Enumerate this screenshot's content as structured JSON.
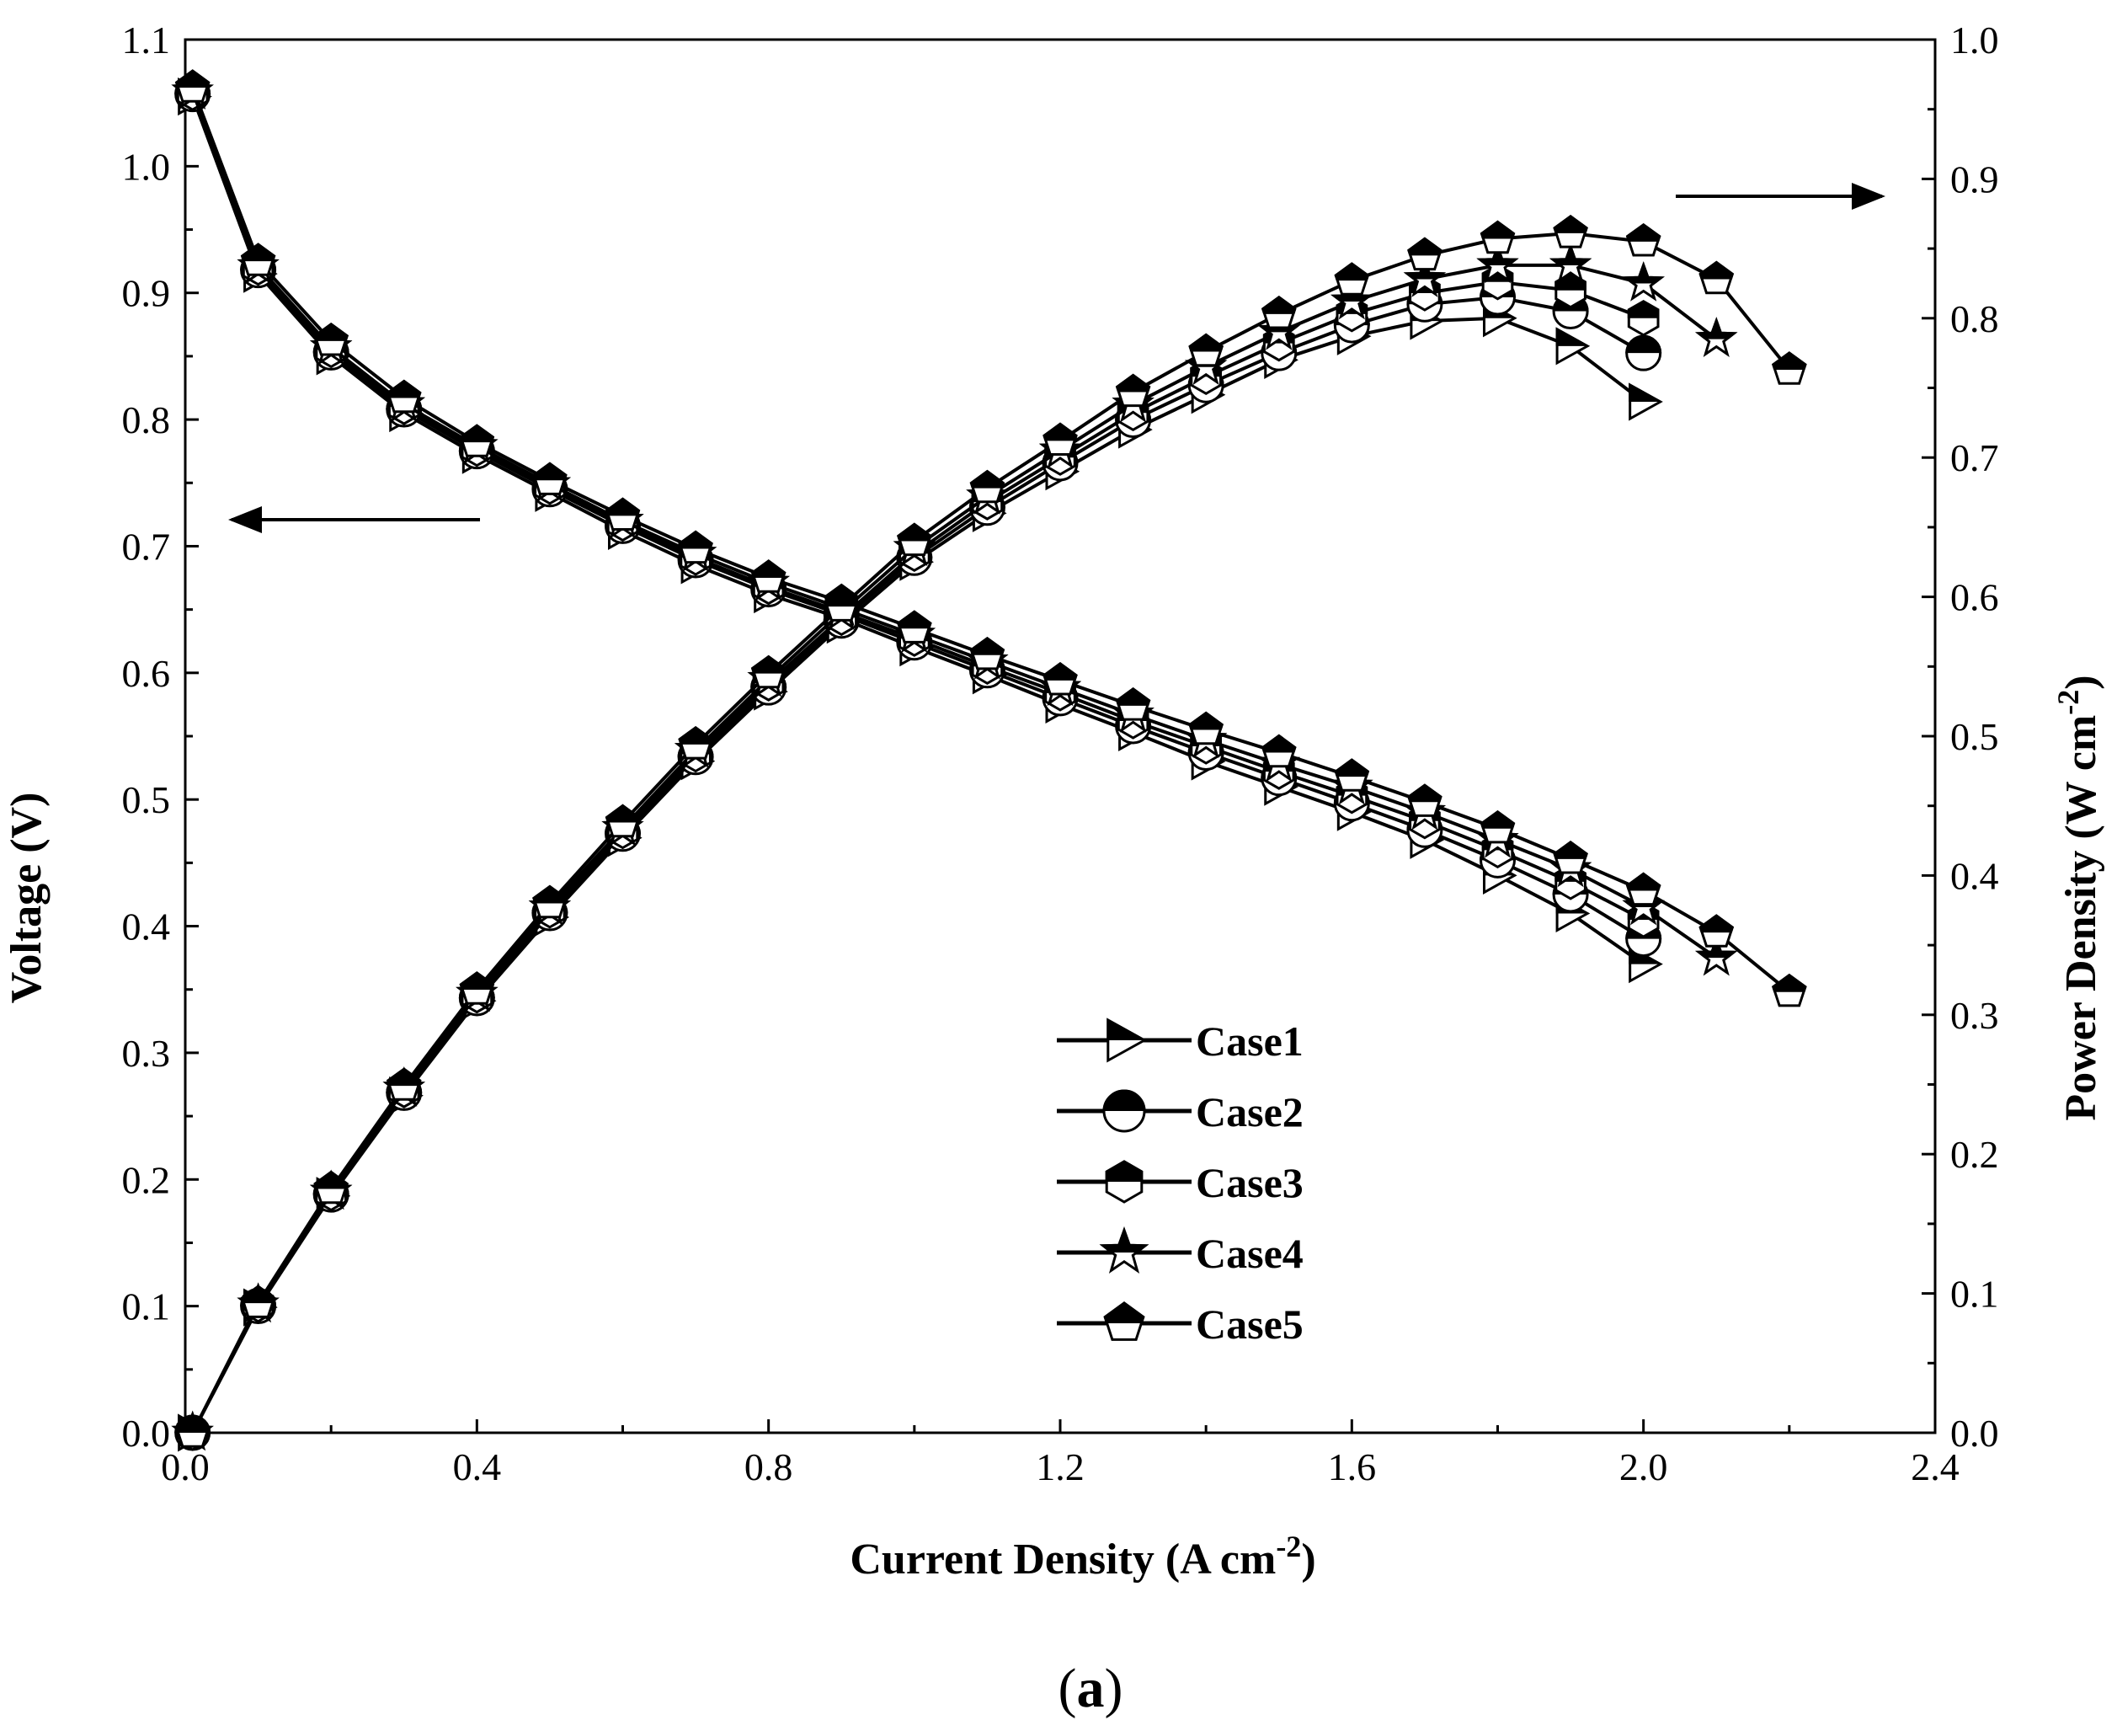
{
  "chart_data": {
    "type": "line",
    "caption": {
      "open": "(",
      "letter": "a",
      "close": ")"
    },
    "xlabel": {
      "text": "Current Density (A cm",
      "sup": "-2",
      "close": ")"
    },
    "ylabel_left": "Voltage (V)",
    "ylabel_right": {
      "text": "Power Density (W cm",
      "sup": "-2",
      "close": ")"
    },
    "xlim": [
      0,
      2.4
    ],
    "ylim_left": [
      0,
      1.1
    ],
    "ylim_right": [
      0,
      1.0
    ],
    "x_ticks": [
      "0.0",
      "0.4",
      "0.8",
      "1.2",
      "1.6",
      "2.0",
      "2.4"
    ],
    "y_left_ticks": [
      "0.0",
      "0.1",
      "0.2",
      "0.3",
      "0.4",
      "0.5",
      "0.6",
      "0.7",
      "0.8",
      "0.9",
      "1.0",
      "1.1"
    ],
    "y_right_ticks": [
      "0.0",
      "0.1",
      "0.2",
      "0.3",
      "0.4",
      "0.5",
      "0.6",
      "0.7",
      "0.8",
      "0.9",
      "1.0"
    ],
    "arrows": [
      {
        "points_to": "left-axis",
        "series_group": "voltage"
      },
      {
        "points_to": "right-axis",
        "series_group": "power"
      }
    ],
    "series": [
      {
        "name": "Case1",
        "marker": "triangle-right",
        "voltage": {
          "x": [
            0.01,
            0.1,
            0.2,
            0.3,
            0.4,
            0.5,
            0.6,
            0.7,
            0.8,
            0.9,
            1.0,
            1.1,
            1.2,
            1.3,
            1.4,
            1.5,
            1.6,
            1.7,
            1.8,
            1.9,
            2.0
          ],
          "y": [
            1.055,
            0.915,
            0.85,
            0.805,
            0.772,
            0.742,
            0.712,
            0.685,
            0.662,
            0.643,
            0.62,
            0.598,
            0.575,
            0.553,
            0.53,
            0.51,
            0.49,
            0.468,
            0.44,
            0.41,
            0.37
          ]
        },
        "power": {
          "x": [
            0.01,
            0.1,
            0.2,
            0.3,
            0.4,
            0.5,
            0.6,
            0.7,
            0.8,
            0.9,
            1.0,
            1.1,
            1.2,
            1.3,
            1.4,
            1.5,
            1.6,
            1.7,
            1.8,
            1.9,
            2.0
          ],
          "y": [
            0.0,
            0.09,
            0.17,
            0.242,
            0.31,
            0.37,
            0.427,
            0.482,
            0.532,
            0.58,
            0.625,
            0.66,
            0.69,
            0.72,
            0.745,
            0.77,
            0.787,
            0.798,
            0.8,
            0.78,
            0.74
          ]
        }
      },
      {
        "name": "Case2",
        "marker": "circle-half",
        "voltage": {
          "x": [
            0.01,
            0.1,
            0.2,
            0.3,
            0.4,
            0.5,
            0.6,
            0.7,
            0.8,
            0.9,
            1.0,
            1.1,
            1.2,
            1.3,
            1.4,
            1.5,
            1.6,
            1.7,
            1.8,
            1.9,
            2.0
          ],
          "y": [
            1.057,
            0.918,
            0.853,
            0.808,
            0.775,
            0.745,
            0.716,
            0.689,
            0.666,
            0.646,
            0.624,
            0.602,
            0.58,
            0.558,
            0.537,
            0.517,
            0.497,
            0.476,
            0.452,
            0.425,
            0.39
          ]
        },
        "power": {
          "x": [
            0.01,
            0.1,
            0.2,
            0.3,
            0.4,
            0.5,
            0.6,
            0.7,
            0.8,
            0.9,
            1.0,
            1.1,
            1.2,
            1.3,
            1.4,
            1.5,
            1.6,
            1.7,
            1.8,
            1.9,
            2.0
          ],
          "y": [
            0.0,
            0.091,
            0.171,
            0.244,
            0.312,
            0.373,
            0.43,
            0.485,
            0.535,
            0.583,
            0.628,
            0.664,
            0.696,
            0.727,
            0.752,
            0.775,
            0.795,
            0.81,
            0.815,
            0.805,
            0.775
          ]
        }
      },
      {
        "name": "Case3",
        "marker": "hexagon-half",
        "voltage": {
          "x": [
            0.01,
            0.1,
            0.2,
            0.3,
            0.4,
            0.5,
            0.6,
            0.7,
            0.8,
            0.9,
            1.0,
            1.1,
            1.2,
            1.3,
            1.4,
            1.5,
            1.6,
            1.7,
            1.8,
            1.9,
            2.0
          ],
          "y": [
            1.058,
            0.92,
            0.855,
            0.81,
            0.777,
            0.747,
            0.718,
            0.691,
            0.668,
            0.648,
            0.627,
            0.605,
            0.584,
            0.562,
            0.542,
            0.522,
            0.503,
            0.483,
            0.46,
            0.435,
            0.405
          ]
        },
        "power": {
          "x": [
            0.01,
            0.1,
            0.2,
            0.3,
            0.4,
            0.5,
            0.6,
            0.7,
            0.8,
            0.9,
            1.0,
            1.1,
            1.2,
            1.3,
            1.4,
            1.5,
            1.6,
            1.7,
            1.8,
            1.9,
            2.0
          ],
          "y": [
            0.0,
            0.092,
            0.172,
            0.246,
            0.314,
            0.375,
            0.432,
            0.487,
            0.538,
            0.585,
            0.631,
            0.668,
            0.7,
            0.732,
            0.758,
            0.782,
            0.803,
            0.818,
            0.826,
            0.82,
            0.8
          ]
        }
      },
      {
        "name": "Case4",
        "marker": "star",
        "voltage": {
          "x": [
            0.01,
            0.1,
            0.2,
            0.3,
            0.4,
            0.5,
            0.6,
            0.7,
            0.8,
            0.9,
            1.0,
            1.1,
            1.2,
            1.3,
            1.4,
            1.5,
            1.6,
            1.7,
            1.8,
            1.9,
            2.0,
            2.1
          ],
          "y": [
            1.059,
            0.921,
            0.857,
            0.812,
            0.779,
            0.749,
            0.72,
            0.694,
            0.671,
            0.651,
            0.63,
            0.609,
            0.588,
            0.567,
            0.547,
            0.528,
            0.51,
            0.49,
            0.468,
            0.445,
            0.415,
            0.375
          ]
        },
        "power": {
          "x": [
            0.01,
            0.1,
            0.2,
            0.3,
            0.4,
            0.5,
            0.6,
            0.7,
            0.8,
            0.9,
            1.0,
            1.1,
            1.2,
            1.3,
            1.4,
            1.5,
            1.6,
            1.7,
            1.8,
            1.9,
            2.0,
            2.1
          ],
          "y": [
            0.0,
            0.092,
            0.173,
            0.247,
            0.315,
            0.377,
            0.434,
            0.49,
            0.541,
            0.589,
            0.635,
            0.672,
            0.705,
            0.738,
            0.765,
            0.79,
            0.812,
            0.828,
            0.838,
            0.838,
            0.825,
            0.785
          ]
        }
      },
      {
        "name": "Case5",
        "marker": "pentagon-half",
        "voltage": {
          "x": [
            0.01,
            0.1,
            0.2,
            0.3,
            0.4,
            0.5,
            0.6,
            0.7,
            0.8,
            0.9,
            1.0,
            1.1,
            1.2,
            1.3,
            1.4,
            1.5,
            1.6,
            1.7,
            1.8,
            1.9,
            2.0,
            2.1,
            2.2
          ],
          "y": [
            1.062,
            0.925,
            0.862,
            0.817,
            0.782,
            0.752,
            0.724,
            0.698,
            0.675,
            0.656,
            0.635,
            0.614,
            0.594,
            0.574,
            0.555,
            0.537,
            0.518,
            0.498,
            0.477,
            0.453,
            0.428,
            0.395,
            0.348
          ]
        },
        "power": {
          "x": [
            0.01,
            0.1,
            0.2,
            0.3,
            0.4,
            0.5,
            0.6,
            0.7,
            0.8,
            0.9,
            1.0,
            1.1,
            1.2,
            1.3,
            1.4,
            1.5,
            1.6,
            1.7,
            1.8,
            1.9,
            2.0,
            2.1,
            2.2
          ],
          "y": [
            0.0,
            0.093,
            0.175,
            0.249,
            0.318,
            0.38,
            0.438,
            0.494,
            0.545,
            0.593,
            0.64,
            0.678,
            0.712,
            0.747,
            0.776,
            0.803,
            0.827,
            0.845,
            0.857,
            0.861,
            0.855,
            0.828,
            0.763
          ]
        }
      }
    ]
  }
}
